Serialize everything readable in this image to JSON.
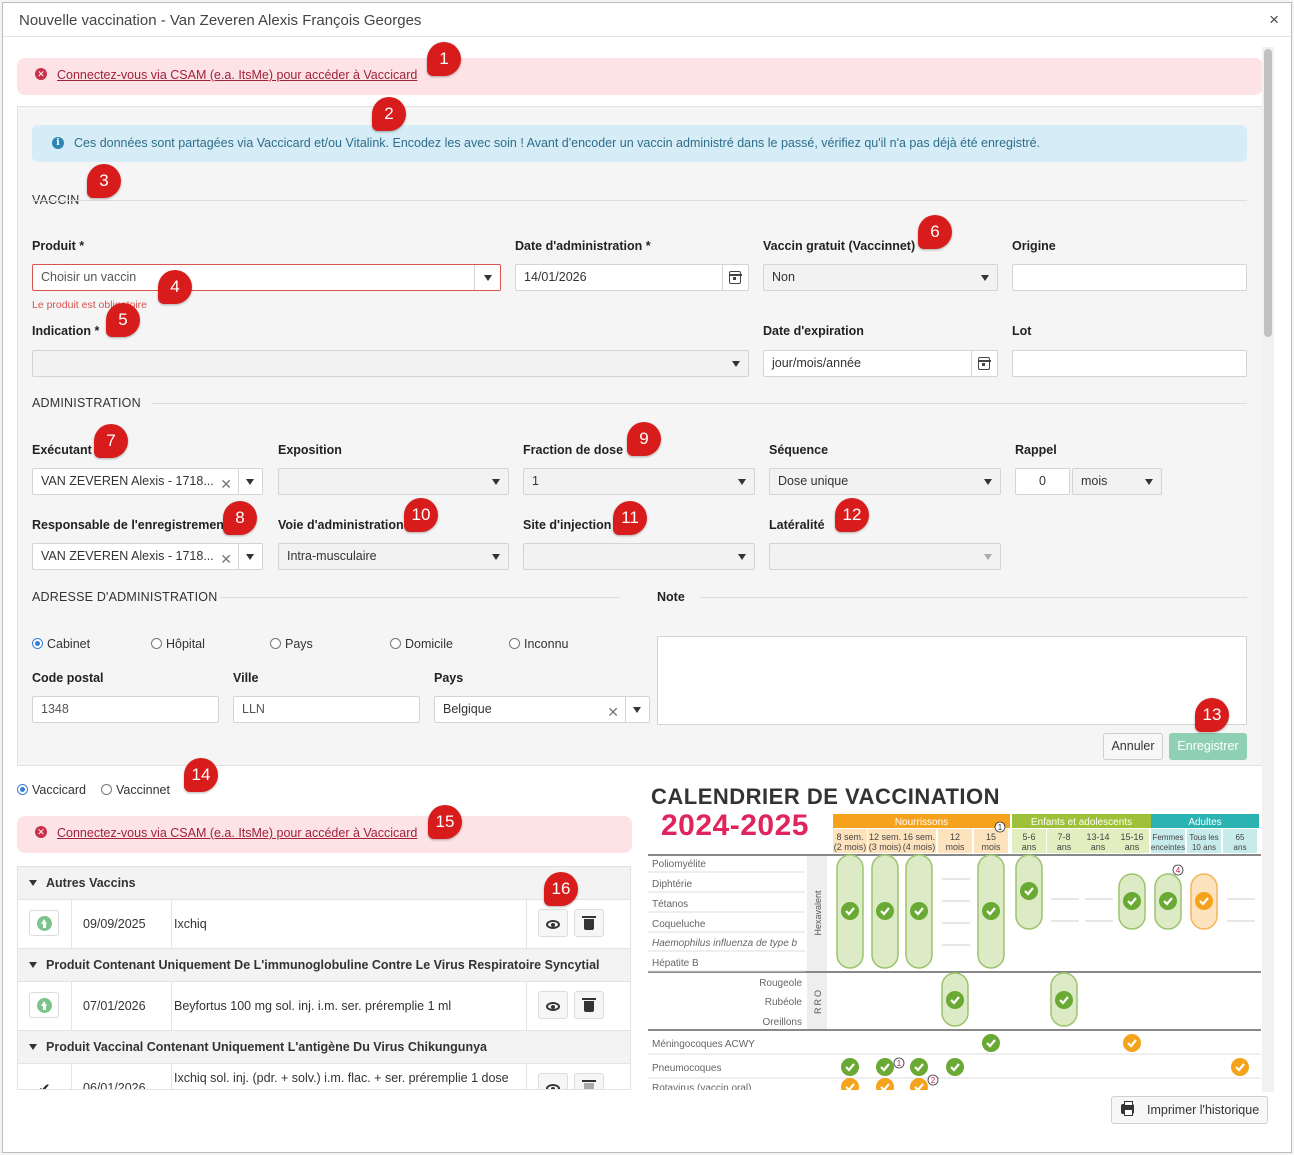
{
  "modal": {
    "title": "Nouvelle vaccination - Van Zeveren Alexis François Georges",
    "close": "×"
  },
  "alerts": {
    "csam_top": "Connectez-vous via CSAM (e.a. ItsMe) pour accéder à Vaccicard",
    "info": "Ces données sont partagées via Vaccicard et/ou Vitalink. Encodez les avec soin ! Avant d'encoder un vaccin administré dans le passé, vérifiez qu'il n'a pas déjà été enregistré.",
    "csam_bottom": "Connectez-vous via CSAM (e.a. ItsMe) pour accéder à Vaccicard"
  },
  "vaccin": {
    "section": "VACCIN",
    "produit_label": "Produit *",
    "produit_placeholder": "Choisir un vaccin",
    "produit_error": "Le produit est obligatoire",
    "date_admin_label": "Date d'administration *",
    "date_admin_value": "14/01/2026",
    "gratuit_label": "Vaccin gratuit (Vaccinnet)",
    "gratuit_value": "Non",
    "origine_label": "Origine",
    "indication_label": "Indication *",
    "expiration_label": "Date d'expiration",
    "expiration_placeholder": "jour/mois/année",
    "lot_label": "Lot"
  },
  "administration": {
    "section": "ADMINISTRATION",
    "executant_label": "Exécutant",
    "executant_value": "VAN ZEVEREN Alexis - 1718...",
    "exposition_label": "Exposition",
    "fraction_label": "Fraction de dose",
    "fraction_value": "1",
    "sequence_label": "Séquence",
    "sequence_value": "Dose unique",
    "rappel_label": "Rappel",
    "rappel_value": "0",
    "rappel_unit": "mois",
    "responsable_label": "Responsable de l'enregistrement",
    "responsable_value": "VAN ZEVEREN Alexis - 1718...",
    "voie_label": "Voie d'administration",
    "voie_value": "Intra-musculaire",
    "site_label": "Site d'injection",
    "lateralite_label": "Latéralité"
  },
  "adresse": {
    "section": "ADRESSE D'ADMINISTRATION",
    "options": [
      "Cabinet",
      "Hôpital",
      "Pays",
      "Domicile",
      "Inconnu"
    ],
    "selected": "Cabinet",
    "code_postal_label": "Code postal",
    "code_postal_value": "1348",
    "ville_label": "Ville",
    "ville_value": "LLN",
    "pays_label": "Pays",
    "pays_value": "Belgique",
    "note_label": "Note"
  },
  "buttons": {
    "cancel": "Annuler",
    "save": "Enregistrer",
    "print": "Imprimer l'historique"
  },
  "source_switch": {
    "options": [
      "Vaccicard",
      "Vaccinnet"
    ],
    "selected": "Vaccicard"
  },
  "history": {
    "groups": [
      {
        "title": "Autres Vaccins",
        "rows": [
          {
            "date": "09/09/2025",
            "name": "Ixchiq"
          }
        ]
      },
      {
        "title": "Produit Contenant Uniquement De L'immunoglobuline Contre Le Virus Respiratoire Syncytial",
        "rows": [
          {
            "date": "07/01/2026",
            "name": "Beyfortus 100 mg sol. inj. i.m. ser. préremplie 1 ml"
          }
        ]
      },
      {
        "title": "Produit Vaccinal Contenant Uniquement L'antigène Du Virus Chikungunya",
        "rows": [
          {
            "date": "06/01/2026",
            "name": "Ixchiq sol. inj. (pdr. + solv.) i.m. flac. + ser. préremplie 1 dose"
          }
        ]
      }
    ]
  },
  "calendar": {
    "title": "CALENDRIER DE VACCINATION",
    "years": "2024-2025",
    "groups": [
      {
        "name": "Nourrissons",
        "color": "#f6a21d"
      },
      {
        "name": "Enfants et adolescents",
        "color": "#9fc13a"
      },
      {
        "name": "Adultes",
        "color": "#2bb3b1"
      }
    ],
    "ages": [
      [
        "8 sem.",
        "(2 mois)"
      ],
      [
        "12 sem.",
        "(3 mois)"
      ],
      [
        "16 sem.",
        "(4 mois)"
      ],
      [
        "12",
        "mois"
      ],
      [
        "15",
        "mois"
      ],
      [
        "5-6",
        "ans"
      ],
      [
        "7-8",
        "ans"
      ],
      [
        "13-14",
        "ans"
      ],
      [
        "15-16",
        "ans"
      ],
      [
        "Femmes",
        "enceintes"
      ],
      [
        "Tous les",
        "10 ans"
      ],
      [
        "65",
        "ans"
      ]
    ],
    "hexavalent_label": "Hexavalent",
    "hexavalent_rows": [
      "Poliomyélite",
      "Diphtérie",
      "Tétanos",
      "Coqueluche",
      "Haemophilus influenza de type b",
      "Hépatite B"
    ],
    "rro_label": "RRO",
    "rro_rows": [
      "Rougeole",
      "Rubéole",
      "Oreillons"
    ],
    "other_rows": [
      "Méningocoques ACWY",
      "Pneumocoques",
      "Rotavirus (vaccin oral)"
    ],
    "footnotes": [
      "1",
      "4",
      "1",
      "2"
    ]
  },
  "markers": [
    "1",
    "2",
    "3",
    "4",
    "5",
    "6",
    "7",
    "8",
    "9",
    "10",
    "11",
    "12",
    "13",
    "14",
    "15",
    "16"
  ]
}
